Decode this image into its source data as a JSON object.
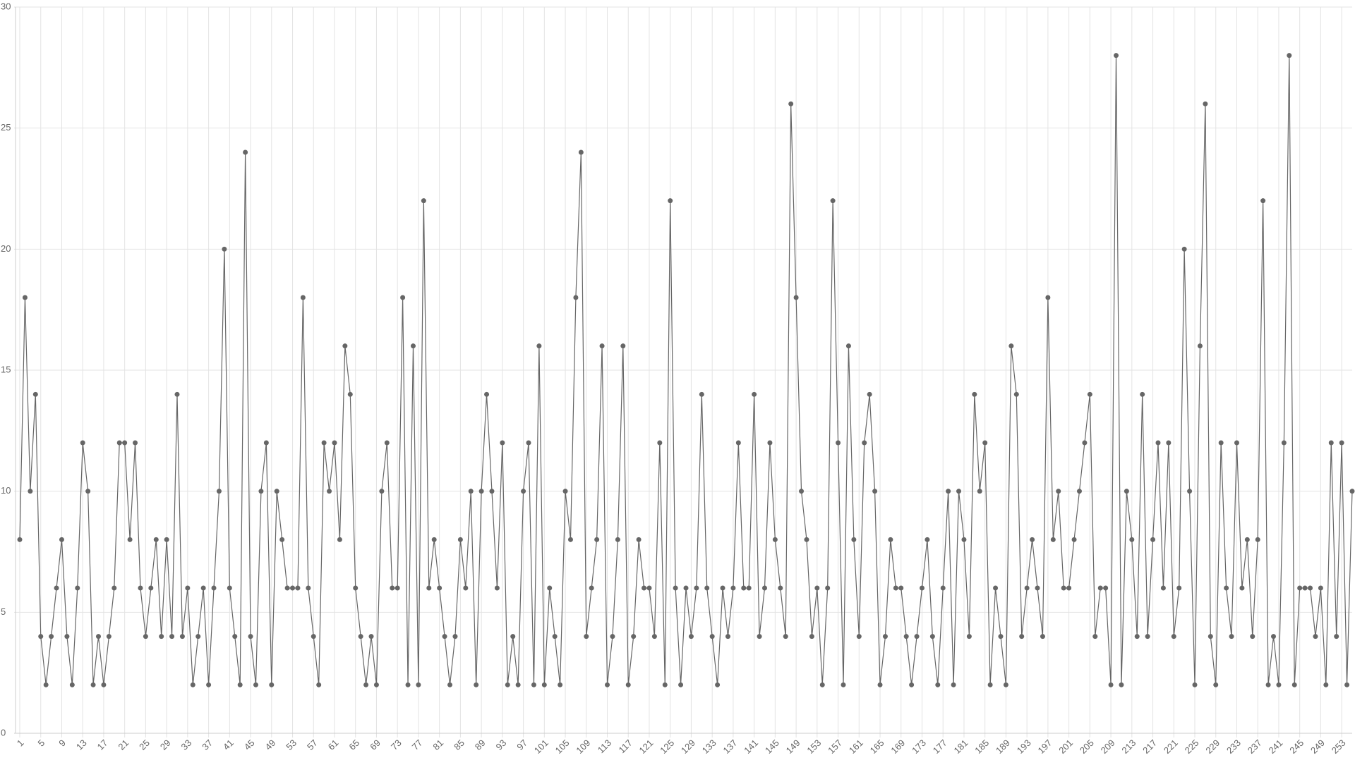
{
  "chart_data": {
    "type": "line",
    "categories": [
      1,
      null,
      null,
      null,
      5,
      null,
      null,
      null,
      9,
      null,
      null,
      null,
      13,
      null,
      null,
      null,
      17,
      null,
      null,
      null,
      21,
      null,
      null,
      null,
      25,
      null,
      null,
      null,
      29,
      null,
      null,
      null,
      33,
      null,
      null,
      null,
      37,
      null,
      null,
      null,
      41,
      null,
      null,
      null,
      45,
      null,
      null,
      null,
      49,
      null,
      null,
      null,
      53,
      null,
      null,
      null,
      57,
      null,
      null,
      null,
      61,
      null,
      null,
      null,
      65,
      null,
      null,
      null,
      69,
      null,
      null,
      null,
      73,
      null,
      null,
      null,
      77,
      null,
      null,
      null,
      81,
      null,
      null,
      null,
      85,
      null,
      null,
      null,
      89,
      null,
      null,
      null,
      93,
      null,
      null,
      null,
      97,
      null,
      null,
      null,
      101,
      null,
      null,
      null,
      105,
      null,
      null,
      null,
      109,
      null,
      null,
      null,
      113,
      null,
      null,
      null,
      117,
      null,
      null,
      null,
      121,
      null,
      null,
      null,
      125,
      null,
      null,
      null,
      129,
      null,
      null,
      null,
      133,
      null,
      null,
      null,
      137,
      null,
      null,
      null,
      141,
      null,
      null,
      null,
      145,
      null,
      null,
      null,
      149,
      null,
      null,
      null,
      153,
      null,
      null,
      null,
      157,
      null,
      null,
      null,
      161,
      null,
      null,
      null,
      165,
      null,
      null,
      null,
      169,
      null,
      null,
      null,
      173,
      null,
      null,
      null,
      177,
      null,
      null,
      null,
      181,
      null,
      null,
      null,
      185,
      null,
      null,
      null,
      189,
      null,
      null,
      null,
      193,
      null,
      null,
      null,
      197,
      null,
      null,
      null,
      201,
      null,
      null,
      null,
      205,
      null,
      null,
      null,
      209,
      null,
      null,
      null,
      213,
      null,
      null,
      null,
      217,
      null,
      null,
      null,
      221,
      null,
      null,
      null,
      225,
      null,
      null,
      null,
      229,
      null,
      null,
      null,
      233,
      null,
      null,
      null,
      237,
      null,
      null,
      null,
      241,
      null,
      null,
      null,
      245,
      null,
      null,
      null,
      249,
      null,
      null,
      null,
      253,
      null,
      null
    ],
    "series": [
      {
        "color": "#666666",
        "values": [
          8,
          18,
          10,
          14,
          4,
          2,
          4,
          6,
          8,
          4,
          2,
          6,
          12,
          10,
          2,
          4,
          2,
          4,
          6,
          12,
          12,
          8,
          12,
          6,
          4,
          6,
          8,
          4,
          8,
          4,
          14,
          4,
          6,
          2,
          4,
          6,
          2,
          6,
          10,
          20,
          6,
          4,
          2,
          24,
          4,
          2,
          10,
          12,
          2,
          10,
          8,
          6,
          6,
          6,
          18,
          6,
          4,
          2,
          12,
          10,
          12,
          8,
          16,
          14,
          6,
          4,
          2,
          4,
          2,
          10,
          12,
          6,
          6,
          18,
          2,
          16,
          2,
          22,
          6,
          8,
          6,
          4,
          2,
          4,
          8,
          6,
          10,
          2,
          10,
          14,
          10,
          6,
          12,
          2,
          4,
          2,
          10,
          12,
          2,
          16,
          2,
          6,
          4,
          2,
          10,
          8,
          18,
          24,
          4,
          6,
          8,
          16,
          2,
          4,
          8,
          16,
          2,
          4,
          8,
          6,
          6,
          4,
          12,
          2,
          22,
          6,
          2,
          6,
          4,
          6,
          14,
          6,
          4,
          2,
          6,
          4,
          6,
          12,
          6,
          6,
          14,
          4,
          6,
          12,
          8,
          6,
          4,
          26,
          18,
          10,
          8,
          4,
          6,
          2,
          6,
          22,
          12,
          2,
          16,
          8,
          4,
          12,
          14,
          10,
          2,
          4,
          8,
          6,
          6,
          4,
          2,
          4,
          6,
          8,
          4,
          2,
          6,
          10,
          2,
          10,
          8,
          4,
          14,
          10,
          12,
          2,
          6,
          4,
          2,
          16,
          14,
          4,
          6,
          8,
          6,
          4,
          18,
          8,
          10,
          6,
          6,
          8,
          10,
          12,
          14,
          4,
          6,
          6,
          2,
          28,
          2,
          10,
          8,
          4,
          14,
          4,
          8,
          12,
          6,
          12,
          4,
          6,
          20,
          10,
          2,
          16,
          26,
          4,
          2,
          12,
          6,
          4,
          12,
          6,
          8,
          4,
          8,
          22,
          2,
          4,
          2,
          12,
          28,
          2,
          6,
          6,
          6,
          4,
          6,
          2,
          12,
          4,
          12,
          2,
          10
        ]
      }
    ],
    "ylim": [
      0,
      30
    ],
    "yticks": [
      0,
      5,
      10,
      15,
      20,
      25,
      30
    ],
    "grid": true
  }
}
